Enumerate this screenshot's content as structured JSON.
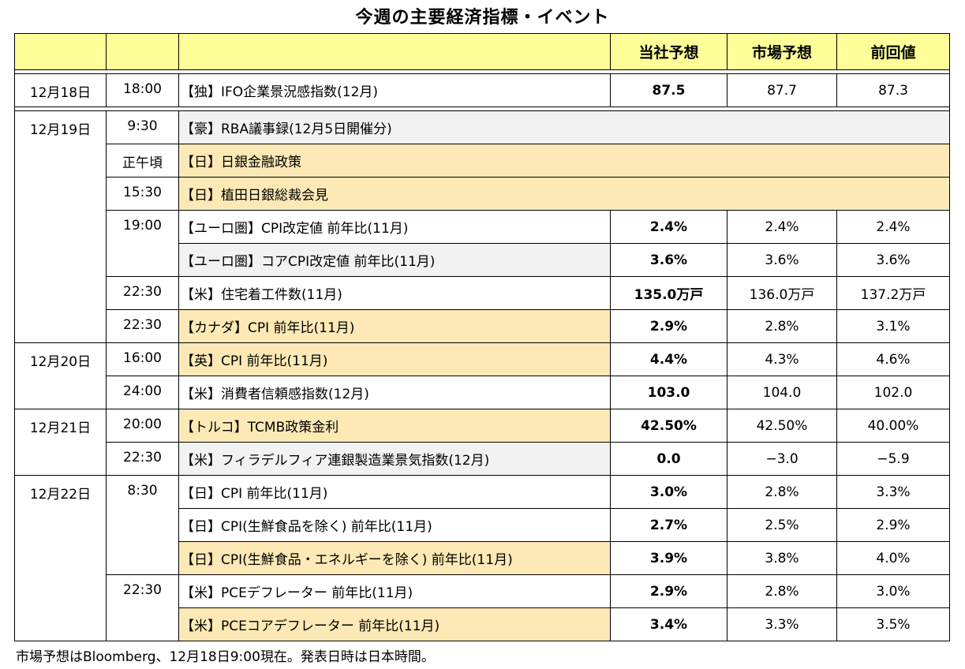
{
  "title": "今週の主要経済指標・イベント",
  "header": {
    "forecast_own": "当社予想",
    "forecast_market": "市場予想",
    "previous": "前回値"
  },
  "rows": [
    {
      "date": "12月18日",
      "time": "18:00",
      "event": "【独】IFO企業景況感指数(12月)",
      "own": "87.5",
      "market": "87.7",
      "prev": "87.3"
    },
    {
      "date": "12月19日",
      "time": "9:30",
      "event": "【豪】RBA議事録(12月5日開催分)",
      "own": "",
      "market": "",
      "prev": ""
    },
    {
      "date": "",
      "time": "正午頃",
      "event": "【日】日銀金融政策",
      "own": "",
      "market": "",
      "prev": ""
    },
    {
      "date": "",
      "time": "15:30",
      "event": "【日】植田日銀総裁会見",
      "own": "",
      "market": "",
      "prev": ""
    },
    {
      "date": "",
      "time": "19:00",
      "event": "【ユーロ圏】CPI改定値 前年比(11月)",
      "own": "2.4%",
      "market": "2.4%",
      "prev": "2.4%"
    },
    {
      "date": "",
      "time": "",
      "event": "【ユーロ圏】コアCPI改定値 前年比(11月)",
      "own": "3.6%",
      "market": "3.6%",
      "prev": "3.6%"
    },
    {
      "date": "",
      "time": "22:30",
      "event": "【米】住宅着工件数(11月)",
      "own": "135.0万戸",
      "market": "136.0万戸",
      "prev": "137.2万戸"
    },
    {
      "date": "",
      "time": "22:30",
      "event": "【カナダ】CPI 前年比(11月)",
      "own": "2.9%",
      "market": "2.8%",
      "prev": "3.1%"
    },
    {
      "date": "12月20日",
      "time": "16:00",
      "event": "【英】CPI 前年比(11月)",
      "own": "4.4%",
      "market": "4.3%",
      "prev": "4.6%"
    },
    {
      "date": "",
      "time": "24:00",
      "event": "【米】消費者信頼感指数(12月)",
      "own": "103.0",
      "market": "104.0",
      "prev": "102.0"
    },
    {
      "date": "12月21日",
      "time": "20:00",
      "event": "【トルコ】TCMB政策金利",
      "own": "42.50%",
      "market": "42.50%",
      "prev": "40.00%"
    },
    {
      "date": "",
      "time": "22:30",
      "event": "【米】フィラデルフィア連銀製造業景気指数(12月)",
      "own": "0.0",
      "market": "−3.0",
      "prev": "−5.9"
    },
    {
      "date": "12月22日",
      "time": "8:30",
      "event": "【日】CPI 前年比(11月)",
      "own": "3.0%",
      "market": "2.8%",
      "prev": "3.3%"
    },
    {
      "date": "",
      "time": "",
      "event": "【日】CPI(生鮮食品を除く) 前年比(11月)",
      "own": "2.7%",
      "market": "2.5%",
      "prev": "2.9%"
    },
    {
      "date": "",
      "time": "",
      "event": "【日】CPI(生鮮食品・エネルギーを除く) 前年比(11月)",
      "own": "3.9%",
      "market": "3.8%",
      "prev": "4.0%"
    },
    {
      "date": "",
      "time": "22:30",
      "event": "【米】PCEデフレーター 前年比(11月)",
      "own": "2.9%",
      "market": "2.8%",
      "prev": "3.0%"
    },
    {
      "date": "",
      "time": "",
      "event": "【米】PCEコアデフレーター 前年比(11月)",
      "own": "3.4%",
      "market": "3.3%",
      "prev": "3.5%"
    }
  ],
  "footnote": "市場予想はBloomberg、12月18日9:00現在。発表日時は日本時間。",
  "colors": {
    "header_bg": "#ffff99",
    "highlight_bg": "#fde9b5",
    "gray_bg": "#f2f2f2"
  }
}
